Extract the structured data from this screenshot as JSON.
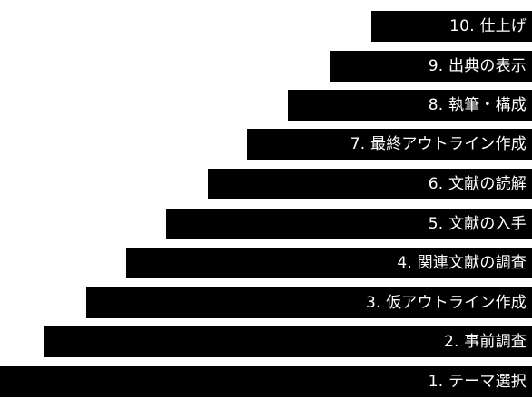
{
  "steps": [
    {
      "label": "10. 仕上げ"
    },
    {
      "label": "9. 出典の表示"
    },
    {
      "label": "8. 執筆・構成"
    },
    {
      "label": "7. 最終アウトライン作成"
    },
    {
      "label": "6. 文献の読解"
    },
    {
      "label": "5. 文献の入手"
    },
    {
      "label": "4. 関連文献の調査"
    },
    {
      "label": "3. 仮アウトライン作成"
    },
    {
      "label": "2. 事前調査"
    },
    {
      "label": "1. テーマ選択"
    }
  ],
  "colors": {
    "bar": "#000000",
    "text": "#ffffff",
    "background": "#ffffff"
  }
}
